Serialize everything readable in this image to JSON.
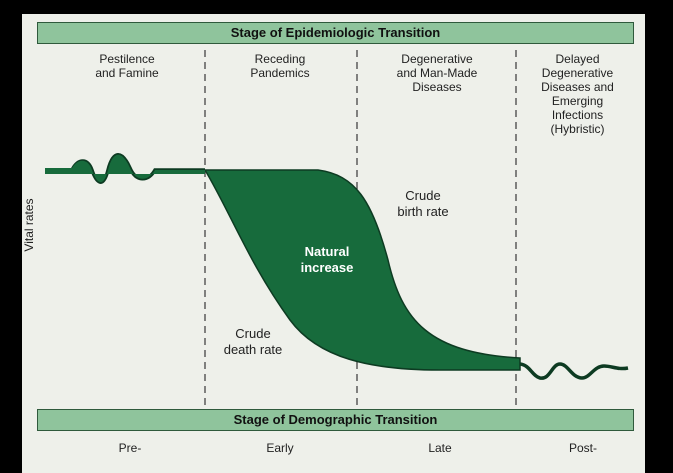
{
  "top_band": {
    "title": "Stage of Epidemiologic Transition"
  },
  "epidemiologic_stages": [
    {
      "label": "Pestilence\nand Famine"
    },
    {
      "label": "Receding\nPandemics"
    },
    {
      "label": "Degenerative\nand Man-Made\nDiseases"
    },
    {
      "label": "Delayed\nDegenerative\nDiseases and\nEmerging\nInfections\n(Hybristic)"
    }
  ],
  "y_axis": {
    "label": "Vital rates"
  },
  "curves": {
    "birth_rate_label": "Crude\nbirth rate",
    "death_rate_label": "Crude\ndeath rate",
    "natural_increase_label": "Natural\nincrease"
  },
  "bottom_band": {
    "title": "Stage of Demographic Transition"
  },
  "demographic_stages": [
    {
      "label": "Pre-"
    },
    {
      "label": "Early"
    },
    {
      "label": "Late"
    },
    {
      "label": "Post-"
    }
  ],
  "colors": {
    "band_fill": "#8fc49c",
    "natural_increase_fill": "#176b3c",
    "curve_stroke": "#0d3b22",
    "background": "#eef0ea",
    "frame": "#000000"
  }
}
